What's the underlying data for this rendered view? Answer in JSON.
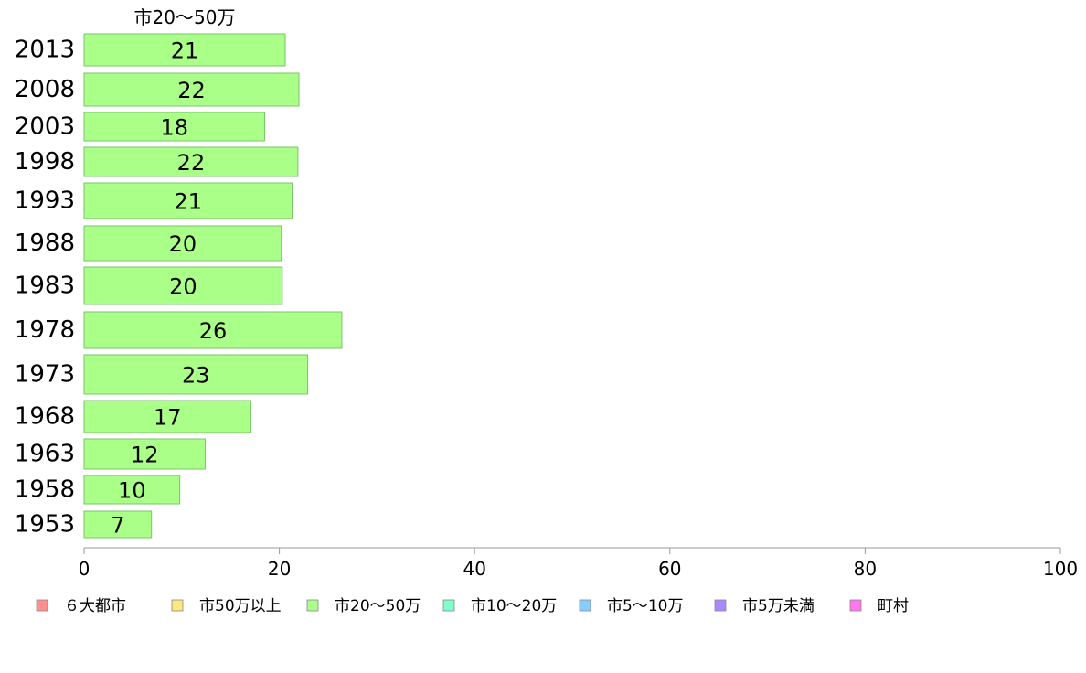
{
  "chart_data": {
    "type": "bar",
    "orientation": "horizontal",
    "series_title": "市20～50万",
    "categories": [
      "2013",
      "2008",
      "2003",
      "1998",
      "1993",
      "1988",
      "1983",
      "1978",
      "1973",
      "1968",
      "1963",
      "1958",
      "1953"
    ],
    "values": [
      20.6,
      22.0,
      18.5,
      21.9,
      21.3,
      20.2,
      20.3,
      26.4,
      22.9,
      17.1,
      12.4,
      9.8,
      6.9
    ],
    "data_labels": [
      "21",
      "22",
      "18",
      "22",
      "21",
      "20",
      "20",
      "26",
      "23",
      "17",
      "12",
      "10",
      "7"
    ],
    "xlim": [
      0,
      100
    ],
    "xticks": [
      "0",
      "20",
      "40",
      "60",
      "80",
      "100"
    ],
    "grid": false,
    "bar_color": "#aaff88",
    "bar_edge": "#79c36a",
    "legend_position": "bottom",
    "legend": [
      {
        "label": "６大都市",
        "color": "#ff8f8f"
      },
      {
        "label": "市50万以上",
        "color": "#ffe680"
      },
      {
        "label": "市20～50万",
        "color": "#aaff88"
      },
      {
        "label": "市10～20万",
        "color": "#80ffcc"
      },
      {
        "label": "市5～10万",
        "color": "#88ccff"
      },
      {
        "label": "市5万未満",
        "color": "#aa88ff"
      },
      {
        "label": "町村",
        "color": "#ff77ee"
      }
    ]
  }
}
